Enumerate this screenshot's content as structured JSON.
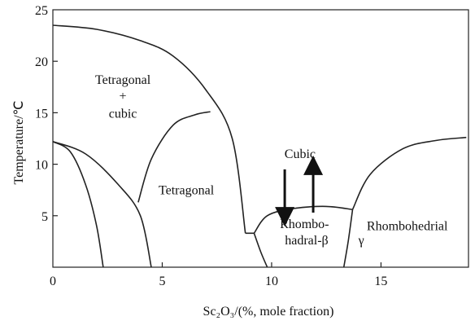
{
  "chart_data": {
    "type": "line",
    "title": "",
    "xlabel": "Sc₂O₃/(%, mole fraction)",
    "ylabel": "Temperature/℃",
    "xlim": [
      0,
      19
    ],
    "ylim": [
      0,
      25
    ],
    "xticks": [
      0,
      5,
      10,
      15
    ],
    "yticks": [
      0,
      5,
      10,
      15,
      20,
      25
    ],
    "grid": false,
    "legend": "none",
    "series": [
      {
        "x": [
          0,
          2,
          4,
          5.5,
          7,
          8.2,
          8.8
        ],
        "y": [
          23.5,
          23.1,
          22,
          20.5,
          17.2,
          12.5,
          3.3
        ]
      },
      {
        "x": [
          0,
          0.8,
          1.5,
          2,
          2.3
        ],
        "y": [
          12.2,
          11.2,
          8,
          4,
          0
        ]
      },
      {
        "x": [
          0,
          1.5,
          3,
          4,
          4.5
        ],
        "y": [
          12.2,
          11,
          8,
          5,
          0
        ]
      },
      {
        "x": [
          3.9,
          4.5,
          5.5,
          6.5,
          7.2
        ],
        "y": [
          6.3,
          10.5,
          13.8,
          14.8,
          15.1
        ]
      },
      {
        "x": [
          8.8,
          9.2
        ],
        "y": [
          3.3,
          3.3
        ]
      },
      {
        "x": [
          9.2,
          9.5,
          9.8
        ],
        "y": [
          3.3,
          1.5,
          0
        ]
      },
      {
        "x": [
          9.2,
          9.8,
          11,
          12.5,
          13.7
        ],
        "y": [
          3.3,
          5,
          5.7,
          5.9,
          5.6
        ]
      },
      {
        "x": [
          13.7,
          13.5,
          13.3
        ],
        "y": [
          5.6,
          2.5,
          0
        ]
      },
      {
        "x": [
          13.7,
          14.5,
          16,
          17.5,
          18.9
        ],
        "y": [
          5.6,
          9,
          11.5,
          12.3,
          12.6
        ]
      }
    ],
    "annotations": [
      {
        "id": "tetragonal-cubic-title",
        "text": "Tetragonal",
        "x": 3.2,
        "y": 17.8
      },
      {
        "id": "plus-sign",
        "text": "+",
        "x": 3.2,
        "y": 16.2
      },
      {
        "id": "cubic-left",
        "text": "cubic",
        "x": 3.2,
        "y": 14.5
      },
      {
        "id": "tetragonal",
        "text": "Tetragonal",
        "x": 6.1,
        "y": 7.1
      },
      {
        "id": "cubic-center",
        "text": "Cubic",
        "x": 11.3,
        "y": 10.6
      },
      {
        "id": "rhombo-line1",
        "text": "Rhombo-",
        "x": 11.5,
        "y": 3.8
      },
      {
        "id": "rhombo-line2",
        "text": "hadral-β",
        "x": 11.6,
        "y": 2.2
      },
      {
        "id": "rhombohedrial",
        "text": "Rhombohedrial",
        "x": 16.2,
        "y": 3.6
      },
      {
        "id": "gamma",
        "text": "γ",
        "x": 14.1,
        "y": 2.2
      }
    ],
    "arrows": [
      {
        "direction": "down",
        "x": 10.6,
        "y_from": 9.5,
        "y_to": 4.9
      },
      {
        "direction": "up",
        "x": 11.9,
        "y_from": 5.3,
        "y_to": 9.9
      }
    ]
  }
}
